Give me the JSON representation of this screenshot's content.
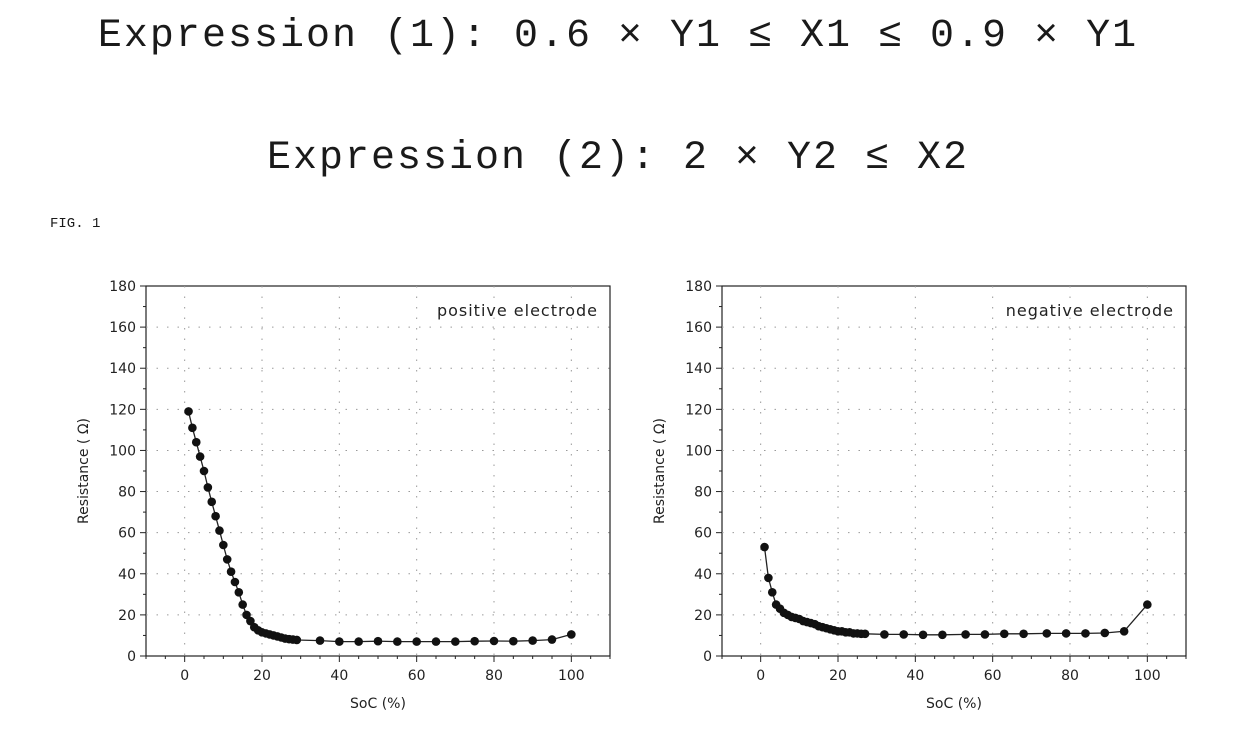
{
  "expressions": {
    "expr1": "Expression (1): 0.6 × Y1 ≤ X1 ≤ 0.9 × Y1",
    "expr2": "Expression (2): 2 × Y2 ≤ X2"
  },
  "figure_label": "FIG. 1",
  "colors": {
    "line": "#222222",
    "grid": "#9a9a9a",
    "marker": "#111111"
  },
  "chart_data": [
    {
      "type": "line",
      "title": "",
      "legend_text": "positive electrode",
      "xlabel": "SoC (%)",
      "ylabel": "Resistance ( Ω)",
      "xlim": [
        -10,
        110
      ],
      "ylim": [
        0,
        180
      ],
      "xticks": [
        0,
        20,
        40,
        60,
        80,
        100
      ],
      "yticks": [
        0,
        20,
        40,
        60,
        80,
        100,
        120,
        140,
        160,
        180
      ],
      "grid": true,
      "legend_position": "top-right",
      "series": [
        {
          "x": [
            1,
            2,
            3,
            4,
            5,
            6,
            7,
            8,
            9,
            10,
            11,
            12,
            13,
            14,
            15,
            16,
            17,
            18,
            19,
            20,
            21,
            22,
            23,
            24,
            25,
            26,
            27,
            28,
            29,
            35,
            40,
            45,
            50,
            55,
            60,
            65,
            70,
            75,
            80,
            85,
            90,
            95,
            100
          ],
          "y": [
            119,
            111,
            104,
            97,
            90,
            82,
            75,
            68,
            61,
            54,
            47,
            41,
            36,
            31,
            25,
            20,
            17,
            14,
            12.5,
            11.5,
            11,
            10.5,
            10,
            9.5,
            9,
            8.5,
            8.2,
            8,
            7.8,
            7.5,
            7,
            7,
            7.2,
            7,
            7,
            7,
            7,
            7.2,
            7.3,
            7.2,
            7.5,
            8,
            10.5
          ]
        }
      ]
    },
    {
      "type": "line",
      "title": "",
      "legend_text": "negative electrode",
      "xlabel": "SoC (%)",
      "ylabel": "Resistance ( Ω)",
      "xlim": [
        -10,
        110
      ],
      "ylim": [
        0,
        180
      ],
      "xticks": [
        0,
        20,
        40,
        60,
        80,
        100
      ],
      "yticks": [
        0,
        20,
        40,
        60,
        80,
        100,
        120,
        140,
        160,
        180
      ],
      "grid": true,
      "legend_position": "top-right",
      "series": [
        {
          "x": [
            1,
            2,
            3,
            4,
            5,
            6,
            7,
            8,
            9,
            10,
            11,
            12,
            13,
            14,
            15,
            16,
            17,
            18,
            19,
            20,
            21,
            22,
            23,
            24,
            25,
            26,
            27,
            32,
            37,
            42,
            47,
            53,
            58,
            63,
            68,
            74,
            79,
            84,
            89,
            94,
            100
          ],
          "y": [
            53,
            38,
            31,
            25,
            23,
            21,
            20,
            19,
            18.5,
            18,
            17,
            16.5,
            16,
            15.5,
            14.5,
            14,
            13.5,
            13,
            12.5,
            12,
            12,
            11.5,
            11.5,
            11,
            11,
            10.8,
            10.8,
            10.5,
            10.5,
            10.3,
            10.3,
            10.5,
            10.5,
            10.8,
            10.8,
            11,
            11,
            11,
            11.2,
            12,
            25
          ]
        }
      ]
    }
  ]
}
